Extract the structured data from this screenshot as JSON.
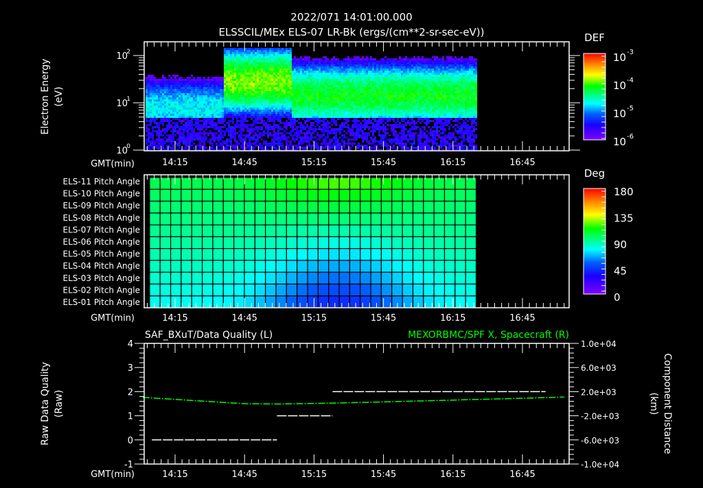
{
  "header": {
    "timestamp": "2022/071 14:01:00.000",
    "title": "ELSSCIL/MEx ELS-07 LR-Bk  (ergs/(cm**2-sr-sec-eV))"
  },
  "time_axis": {
    "label": "GMT(min)",
    "ticks": [
      "14:15",
      "14:45",
      "15:15",
      "15:45",
      "16:15",
      "16:45"
    ]
  },
  "chart_data": [
    {
      "type": "heatmap",
      "name": "electron-energy-spectrogram",
      "title": "ELSSCIL/MEx ELS-07 LR-Bk  (ergs/(cm**2-sr-sec-eV))",
      "xlabel": "GMT(min)",
      "ylabel": "Electron Energy",
      "ylabel_units": "(eV)",
      "yscale": "log",
      "ylim": [
        1,
        150
      ],
      "y_ticks": [
        "10^0",
        "10^1",
        "10^2"
      ],
      "x_tick_labels": [
        "14:15",
        "14:45",
        "15:15",
        "15:45",
        "16:15",
        "16:45"
      ],
      "x_range_min": [
        14.0,
        17.1
      ],
      "data_end_time": "16:25",
      "colorbar": {
        "label": "DEF",
        "scale": "log",
        "range": [
          1e-06,
          0.001
        ],
        "tick_labels": [
          "10^-3",
          "10^-4",
          "10^-5",
          "10^-6"
        ]
      },
      "features": [
        {
          "time_range": [
            "14:01",
            "14:36"
          ],
          "peak_energy_eV": 8,
          "level": "1e-5"
        },
        {
          "time_range": [
            "14:36",
            "15:05"
          ],
          "peak_energy_eV": 30,
          "level": "2e-4"
        },
        {
          "time_range": [
            "15:05",
            "16:25"
          ],
          "peak_energy_eV": 15,
          "level": "8e-5"
        }
      ]
    },
    {
      "type": "heatmap",
      "name": "pitch-angle-grid",
      "xlabel": "GMT(min)",
      "rows": [
        "ELS-11 Pitch Angle",
        "ELS-10 Pitch Angle",
        "ELS-09 Pitch Angle",
        "ELS-08 Pitch Angle",
        "ELS-07 Pitch Angle",
        "ELS-06 Pitch Angle",
        "ELS-05 Pitch Angle",
        "ELS-04 Pitch Angle",
        "ELS-03 Pitch Angle",
        "ELS-02 Pitch Angle",
        "ELS-01 Pitch Angle"
      ],
      "x_tick_labels": [
        "14:15",
        "14:45",
        "15:15",
        "15:45",
        "16:15",
        "16:45"
      ],
      "data_time_range": [
        "14:04",
        "16:25"
      ],
      "columns": 31,
      "colorbar": {
        "label": "Deg",
        "range": [
          0,
          180
        ],
        "tick_labels": [
          "180",
          "135",
          "90",
          "45",
          "0"
        ]
      },
      "approx_values_deg": {
        "top_rows_early": 100,
        "top_rows_mid": 115,
        "bottom_rows_early": 80,
        "bottom_rows_mid": 60
      }
    },
    {
      "type": "line",
      "name": "data-quality-and-spacecraft-x",
      "title_left": "SAF_BXuT/Data Quality (L)",
      "title_right": "MEXORBMC/SPF X, Spacecraft (R)",
      "xlabel": "GMT(min)",
      "ylabel_left": "Raw Data Quality",
      "ylabel_left_units": "(Raw)",
      "ylim_left": [
        -1,
        4
      ],
      "y_ticks_left": [
        "4",
        "3",
        "2",
        "1",
        "0",
        "-1"
      ],
      "ylabel_right": "Component Distance",
      "ylabel_right_units": "(km)",
      "ylim_right": [
        -10000,
        10000
      ],
      "y_ticks_right": [
        "1.0e+04",
        "6.0e+03",
        "2.0e+03",
        "-2.0e+03",
        "-6.0e+03",
        "-1.0e+04"
      ],
      "x_tick_labels": [
        "14:15",
        "14:45",
        "15:15",
        "15:45",
        "16:15",
        "16:45"
      ],
      "series": [
        {
          "name": "Data Quality (L)",
          "color": "#ffffff",
          "segments": [
            {
              "from": "14:05",
              "to": "14:59",
              "value": 0
            },
            {
              "from": "14:59",
              "to": "15:23",
              "value": 1
            },
            {
              "from": "15:23",
              "to": "16:55",
              "value": 2
            }
          ]
        },
        {
          "name": "Spacecraft X (R)",
          "color": "#00ff00",
          "x": [
            "14:01",
            "14:30",
            "14:45",
            "15:00",
            "15:23",
            "15:45",
            "16:15",
            "16:45",
            "17:03"
          ],
          "values_km": [
            1050,
            350,
            0,
            -50,
            100,
            300,
            600,
            900,
            1100
          ]
        }
      ]
    }
  ],
  "labels": {
    "energy_ylabel": "Electron Energy",
    "energy_units": "(eV)",
    "def_label": "DEF",
    "deg_label": "Deg",
    "dq_ylabel": "Raw Data Quality",
    "dq_units": "(Raw)",
    "dist_ylabel": "Component Distance",
    "dist_units": "(km)",
    "bottom_title_left": "SAF_BXuT/Data Quality (L)",
    "bottom_title_right": "MEXORBMC/SPF X, Spacecraft (R)"
  },
  "colors": {
    "background": "#000000",
    "axis": "#ffffff",
    "right_series": "#00ff00"
  }
}
